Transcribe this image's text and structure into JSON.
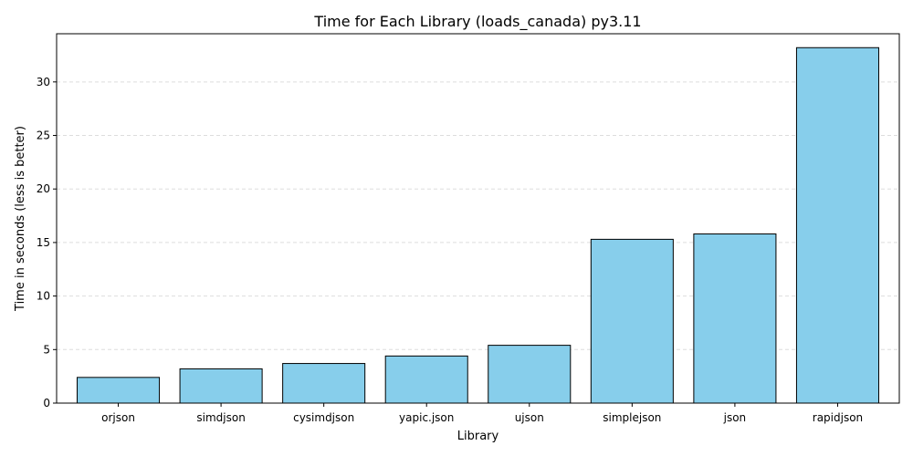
{
  "chart_data": {
    "type": "bar",
    "title": "Time for Each Library (loads_canada) py3.11",
    "xlabel": "Library",
    "ylabel": "Time in seconds (less is better)",
    "categories": [
      "orjson",
      "simdjson",
      "cysimdjson",
      "yapic.json",
      "ujson",
      "simplejson",
      "json",
      "rapidjson"
    ],
    "values": [
      2.4,
      3.2,
      3.7,
      4.4,
      5.4,
      15.3,
      15.8,
      33.2
    ],
    "ylim": [
      0,
      34.5
    ],
    "yticks": [
      0,
      5,
      10,
      15,
      20,
      25,
      30
    ],
    "grid": "horizontal-dashed",
    "legend": "none",
    "colors": {
      "bar_fill": "#87ceeb",
      "bar_edge": "#000000",
      "grid": "#dddddd"
    }
  }
}
